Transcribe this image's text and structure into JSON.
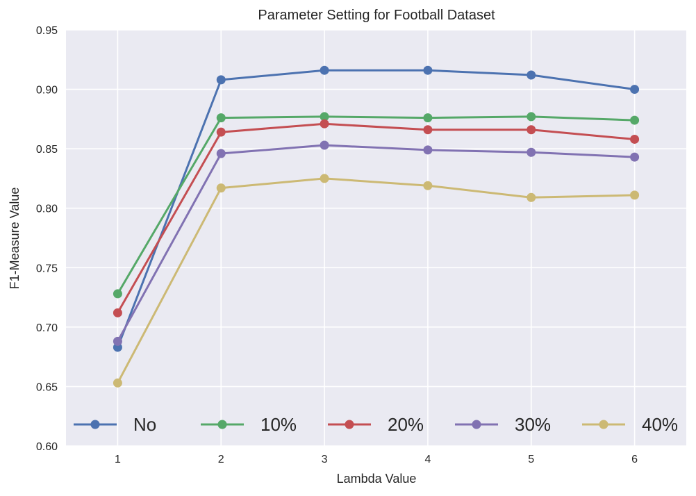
{
  "chart_data": {
    "type": "line",
    "title": "Parameter Setting for Football Dataset",
    "xlabel": "Lambda Value",
    "ylabel": "F1-Measure Value",
    "x": [
      1,
      2,
      3,
      4,
      5,
      6
    ],
    "x_ticks": [
      "1",
      "2",
      "3",
      "4",
      "5",
      "6"
    ],
    "xlim": [
      0.5,
      6.5
    ],
    "ylim": [
      0.6,
      0.95
    ],
    "y_ticks": [
      "0.60",
      "0.65",
      "0.70",
      "0.75",
      "0.80",
      "0.85",
      "0.90",
      "0.95"
    ],
    "grid": true,
    "legend_position": "bottom",
    "series": [
      {
        "name": "No",
        "color": "#4c72b0",
        "values": [
          0.683,
          0.908,
          0.916,
          0.916,
          0.912,
          0.9
        ]
      },
      {
        "name": "10%",
        "color": "#55a868",
        "values": [
          0.728,
          0.876,
          0.877,
          0.876,
          0.877,
          0.874
        ]
      },
      {
        "name": "20%",
        "color": "#c44e52",
        "values": [
          0.712,
          0.864,
          0.871,
          0.866,
          0.866,
          0.858
        ]
      },
      {
        "name": "30%",
        "color": "#8172b2",
        "values": [
          0.688,
          0.846,
          0.853,
          0.849,
          0.847,
          0.843
        ]
      },
      {
        "name": "40%",
        "color": "#ccb974",
        "values": [
          0.653,
          0.817,
          0.825,
          0.819,
          0.809,
          0.811
        ]
      }
    ],
    "colors": {
      "plot_background": "#eaeaf2",
      "grid": "#ffffff"
    }
  }
}
